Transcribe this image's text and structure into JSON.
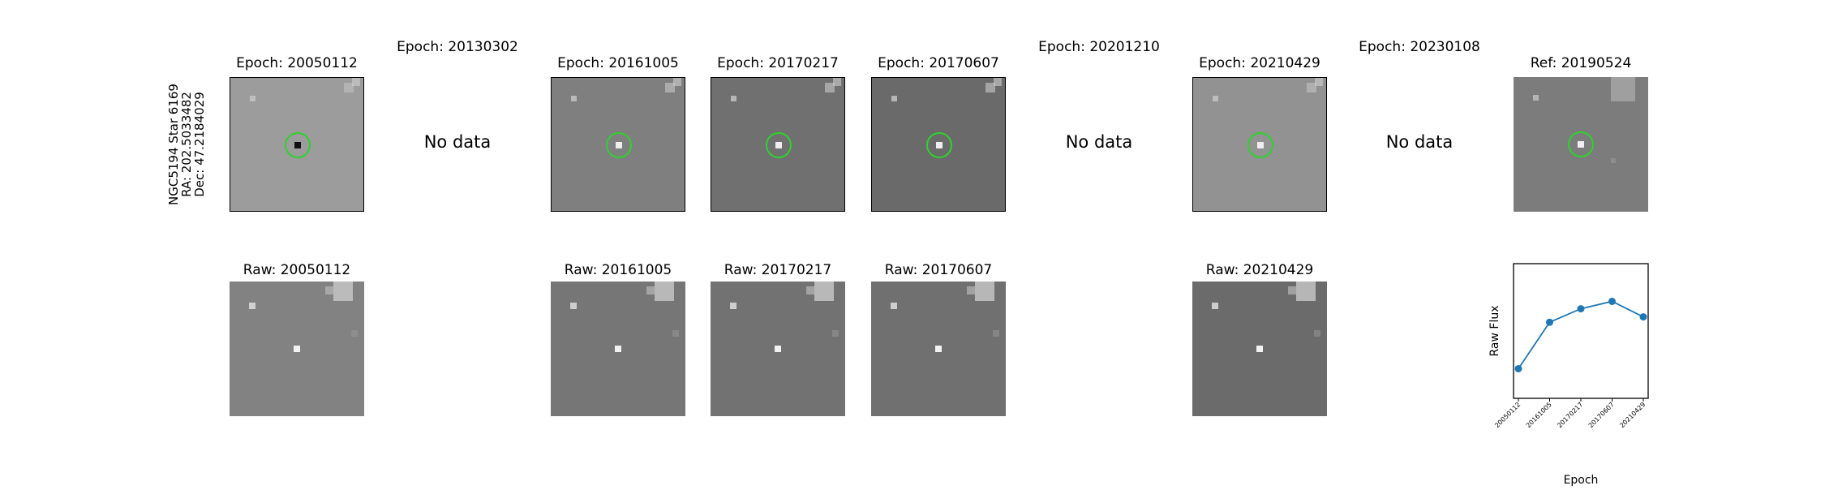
{
  "star": {
    "line1": "NGC5194 Star 6169",
    "line2": "RA: 202.5033482",
    "line3": "Dec: 47.2184029"
  },
  "no_data_text": "No data",
  "epochs": [
    {
      "id": "20050112",
      "diff_title": "Epoch: 20050112",
      "raw_title": "Raw: 20050112",
      "has_data": true,
      "diff_bg": "#9c9c9c",
      "raw_bg": "#828282"
    },
    {
      "id": "20130302",
      "diff_title": "Epoch: 20130302",
      "raw_title": "",
      "has_data": false
    },
    {
      "id": "20161005",
      "diff_title": "Epoch: 20161005",
      "raw_title": "Raw: 20161005",
      "has_data": true,
      "diff_bg": "#7f7f7f",
      "raw_bg": "#767676"
    },
    {
      "id": "20170217",
      "diff_title": "Epoch: 20170217",
      "raw_title": "Raw: 20170217",
      "has_data": true,
      "diff_bg": "#707070",
      "raw_bg": "#727272"
    },
    {
      "id": "20170607",
      "diff_title": "Epoch: 20170607",
      "raw_title": "Raw: 20170607",
      "has_data": true,
      "diff_bg": "#6a6a6a",
      "raw_bg": "#707070"
    },
    {
      "id": "20201210",
      "diff_title": "Epoch: 20201210",
      "raw_title": "",
      "has_data": false
    },
    {
      "id": "20210429",
      "diff_title": "Epoch: 20210429",
      "raw_title": "Raw: 20210429",
      "has_data": true,
      "diff_bg": "#929292",
      "raw_bg": "#6b6b6b"
    },
    {
      "id": "20230108",
      "diff_title": "Epoch: 20230108",
      "raw_title": "",
      "has_data": false
    }
  ],
  "reference": {
    "title": "Ref: 20190524",
    "bg": "#7c7c7c"
  },
  "colors": {
    "circle": "#2fd12f",
    "line": "#1f77b4"
  },
  "chart_data": {
    "type": "line",
    "xlabel": "Epoch",
    "ylabel": "Raw Flux",
    "title": "",
    "categories": [
      "20050112",
      "20161005",
      "20170217",
      "20170607",
      "20210429"
    ],
    "values": [
      0.22,
      0.565,
      0.665,
      0.72,
      0.605
    ],
    "ylim": [
      0,
      1
    ],
    "grid": false,
    "legend": "none"
  }
}
